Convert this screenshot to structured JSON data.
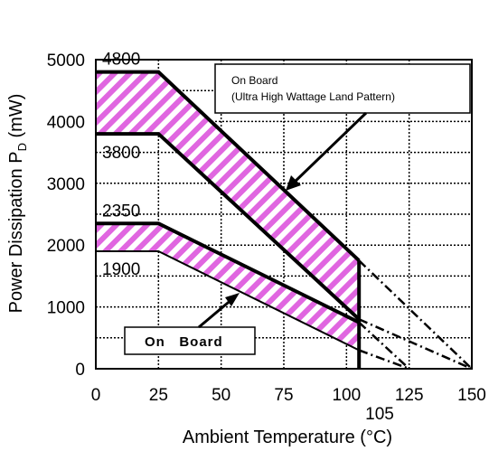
{
  "chart_data": {
    "type": "line",
    "xlabel": "Ambient Temperature (°C)",
    "ylabel_main": "Power Dissipation P",
    "ylabel_sub": "D",
    "ylabel_unit": " (mW)",
    "xlim": [
      0,
      150
    ],
    "ylim": [
      0,
      5000
    ],
    "x_ticks": [
      0,
      25,
      50,
      75,
      100,
      125,
      150
    ],
    "y_ticks": [
      0,
      1000,
      2000,
      3000,
      4000,
      5000
    ],
    "x_tick_labels": [
      "0",
      "25",
      "50",
      "75",
      "100",
      "125",
      "150"
    ],
    "y_tick_labels": [
      "0",
      "1000",
      "2000",
      "3000",
      "4000",
      "5000"
    ],
    "grid": true,
    "extra_x_label": "105",
    "value_labels": [
      "4800",
      "3800",
      "2350",
      "1900"
    ],
    "series": [
      {
        "x": [
          0,
          25,
          105
        ],
        "y": [
          4800,
          4800,
          1750
        ]
      },
      {
        "x": [
          0,
          25,
          105
        ],
        "y": [
          3800,
          3800,
          800
        ]
      },
      {
        "x": [
          0,
          25,
          105
        ],
        "y": [
          2350,
          2350,
          750
        ]
      },
      {
        "x": [
          0,
          25,
          105
        ],
        "y": [
          1900,
          1900,
          300
        ]
      }
    ],
    "extrapolations": [
      {
        "x": [
          105,
          150
        ],
        "y": [
          1750,
          0
        ]
      },
      {
        "x": [
          105,
          150
        ],
        "y": [
          800,
          0
        ]
      },
      {
        "x": [
          105,
          125
        ],
        "y": [
          750,
          0
        ]
      },
      {
        "x": [
          105,
          125
        ],
        "y": [
          300,
          0
        ]
      }
    ],
    "annotations": {
      "upper_label_line1": "On Board",
      "upper_label_line2": "(Ultra High Wattage Land Pattern)",
      "lower_label": "On   Board"
    },
    "colors": {
      "hatch": "#e066e0",
      "line": "#000000",
      "grid": "#000000"
    }
  }
}
